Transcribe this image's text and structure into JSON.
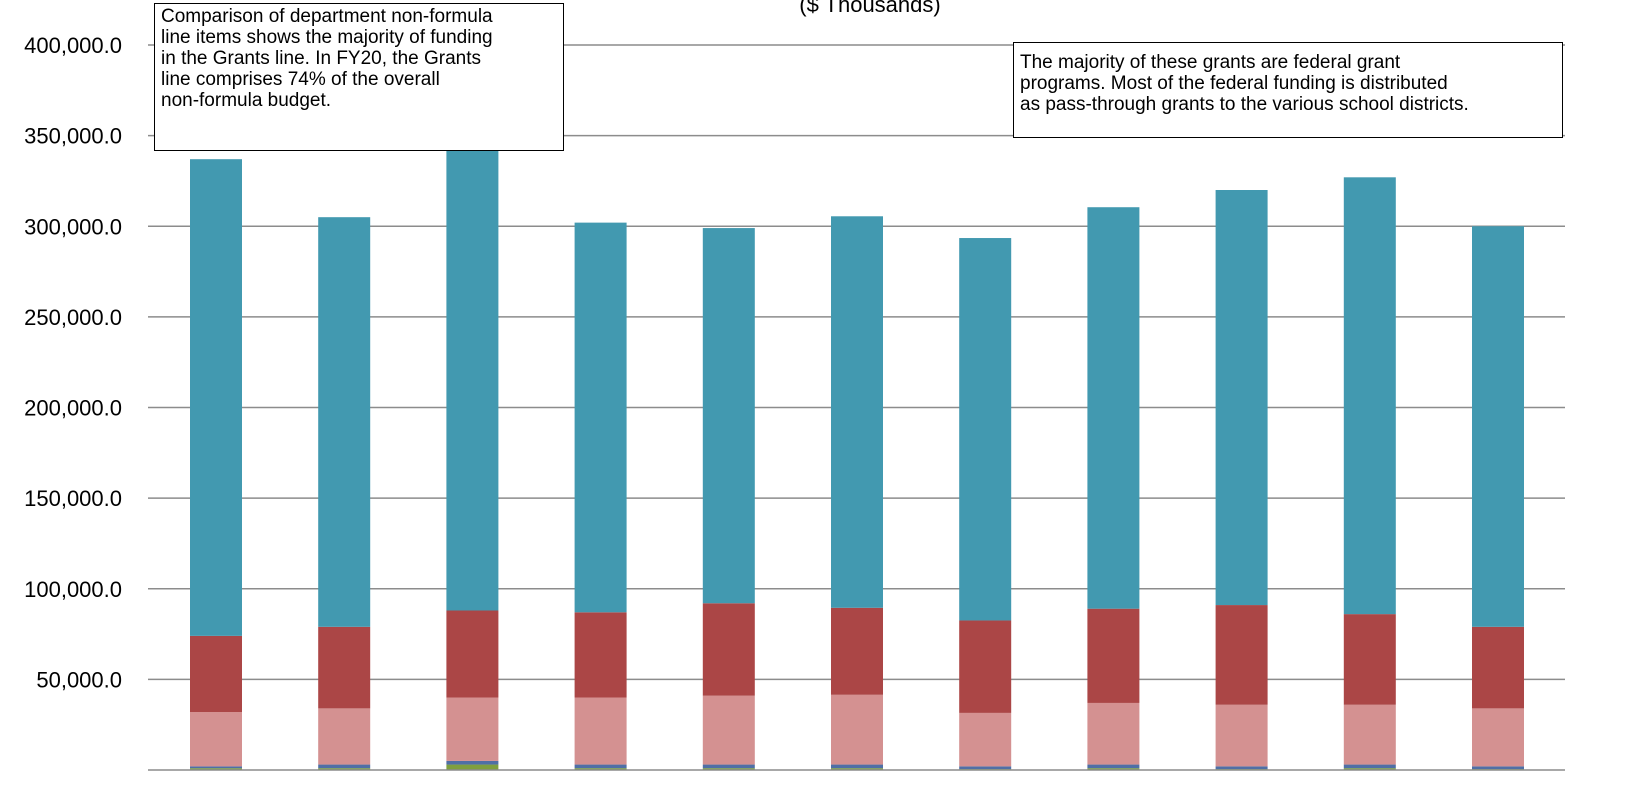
{
  "chart_data": {
    "type": "bar",
    "stacked": true,
    "subtitle": "($ Thousands)",
    "ylim": [
      0,
      400000
    ],
    "y_ticks": [
      50000,
      100000,
      150000,
      200000,
      250000,
      300000,
      350000,
      400000
    ],
    "y_tick_labels": [
      "50,000.0",
      "100,000.0",
      "150,000.0",
      "200,000.0",
      "250,000.0",
      "300,000.0",
      "350,000.0",
      "400,000.0"
    ],
    "grid": true,
    "categories": [
      "",
      "",
      "",
      "",
      "",
      "",
      "",
      "",
      "",
      "",
      ""
    ],
    "series": [
      {
        "color": "#7f9f3f",
        "values": [
          1000,
          1000,
          3000,
          1000,
          1000,
          1000,
          500,
          1000,
          500,
          1000,
          500
        ]
      },
      {
        "color": "#4f6fa6",
        "values": [
          1000,
          2000,
          2000,
          2000,
          2000,
          2000,
          1500,
          2000,
          1500,
          2000,
          1500
        ]
      },
      {
        "color": "#d49191",
        "values": [
          30000,
          31000,
          35000,
          37000,
          38000,
          38500,
          29500,
          34000,
          34000,
          33000,
          32000
        ]
      },
      {
        "color": "#ab4646",
        "values": [
          42000,
          45000,
          48000,
          47000,
          51000,
          48000,
          51000,
          52000,
          55000,
          50000,
          45000
        ]
      },
      {
        "color": "#4299b0",
        "values": [
          263000,
          226000,
          255000,
          215000,
          207000,
          216000,
          211000,
          221500,
          229000,
          241000,
          221000
        ]
      }
    ]
  },
  "annotations": {
    "left_note": {
      "lines": [
        "Comparison of department non-formula",
        "line items shows the majority of funding",
        "in the Grants line. In FY20,  the Grants",
        "line comprises 74% of the overall",
        "non-formula budget."
      ]
    },
    "right_note": {
      "lines": [
        "The majority of these grants are federal grant",
        "programs.   Most of the federal funding is distributed",
        "as pass-through grants to the various school districts."
      ]
    }
  }
}
